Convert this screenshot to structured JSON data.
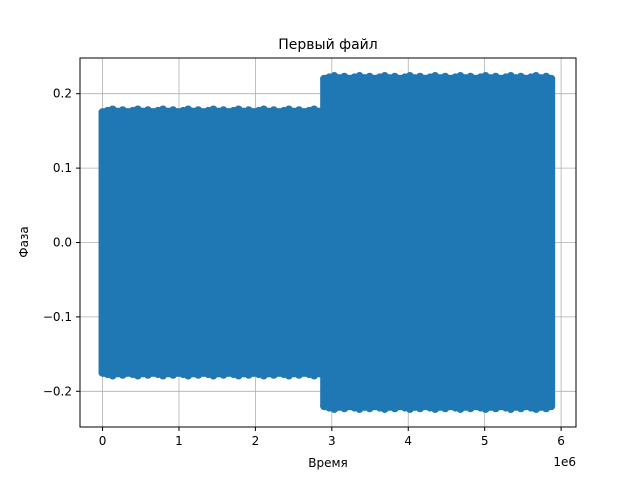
{
  "chart_data": {
    "type": "scatter",
    "title": "Первый файл",
    "xlabel": "Время",
    "ylabel": "Фаза",
    "x_offset_label": "1e6",
    "x_ticks": [
      "0",
      "1",
      "2",
      "3",
      "4",
      "5",
      "6"
    ],
    "y_ticks": [
      "−0.2",
      "−0.1",
      "0.0",
      "0.1",
      "0.2"
    ],
    "x_tick_values": [
      0,
      1,
      2,
      3,
      4,
      5,
      6
    ],
    "y_tick_values": [
      -0.2,
      -0.1,
      0.0,
      0.1,
      0.2
    ],
    "xlim": [
      -0.295,
      6.195
    ],
    "ylim": [
      -0.248,
      0.248
    ],
    "x_scale_factor": 1000000,
    "grid": true,
    "series": [
      {
        "color": "#1f77b4",
        "segments": [
          {
            "x_start": 0.0,
            "x_end": 2.9,
            "y_min": -0.175,
            "y_max": 0.175
          },
          {
            "x_start": 2.9,
            "x_end": 5.87,
            "y_min": -0.22,
            "y_max": 0.22
          }
        ]
      }
    ]
  }
}
